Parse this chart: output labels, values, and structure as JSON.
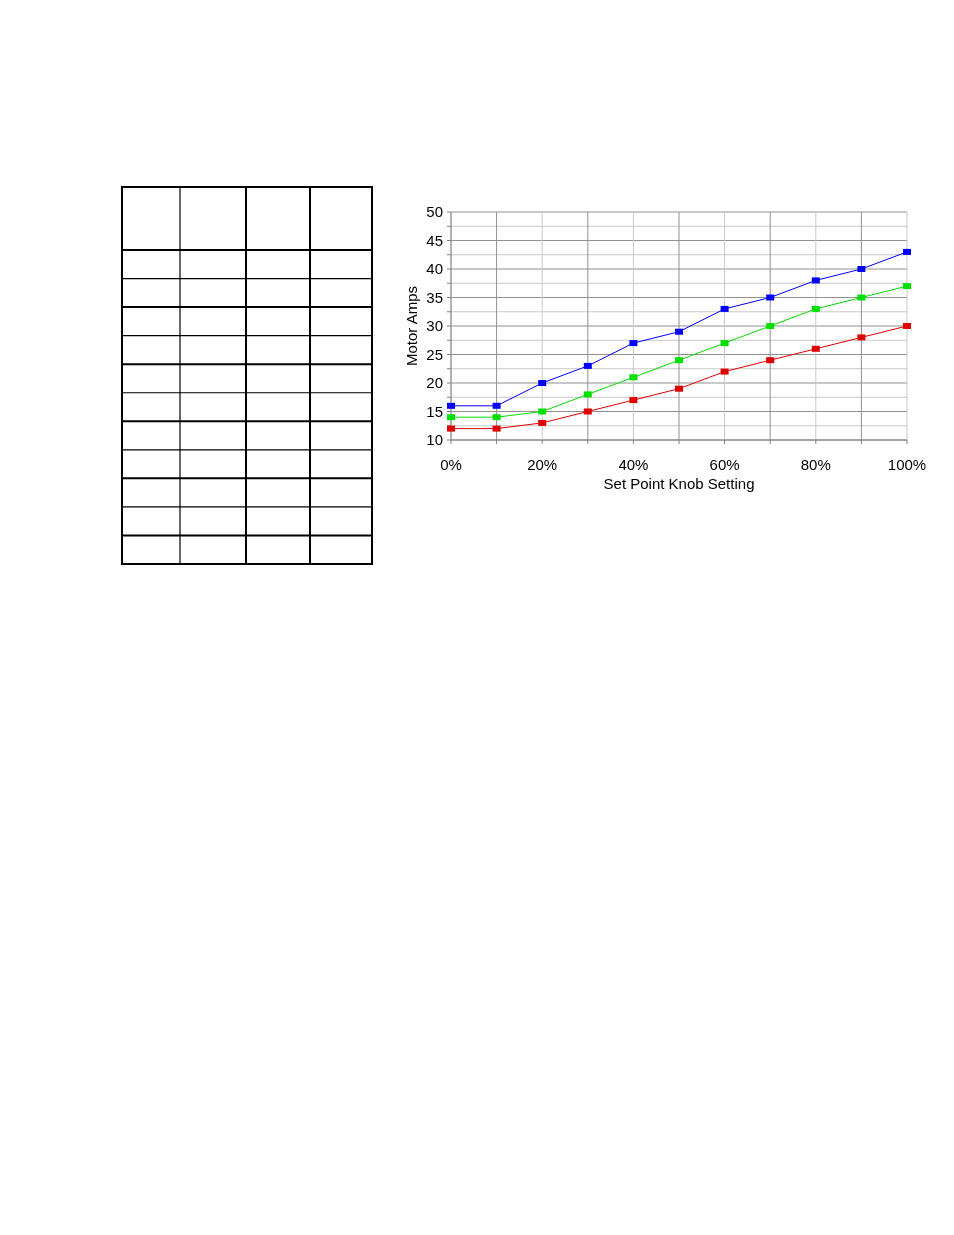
{
  "chart_data": {
    "type": "line",
    "xlabel": "Set Point Knob Setting",
    "ylabel": "Motor Amps",
    "x": [
      0,
      10,
      20,
      30,
      40,
      50,
      60,
      70,
      80,
      90,
      100
    ],
    "series": [
      {
        "color": "#0000ff",
        "values": [
          16,
          16,
          20,
          23,
          27,
          29,
          33,
          35,
          38,
          40,
          43
        ]
      },
      {
        "color": "#00e000",
        "values": [
          14,
          14,
          15,
          18,
          21,
          24,
          27,
          30,
          33,
          35,
          37
        ]
      },
      {
        "color": "#e00000",
        "values": [
          12,
          12,
          13,
          15,
          17,
          19,
          22,
          24,
          26,
          28,
          30
        ]
      }
    ],
    "xlim": [
      0,
      100
    ],
    "xticks": [
      {
        "value": 0,
        "label": "0%"
      },
      {
        "value": 10,
        "label": null
      },
      {
        "value": 20,
        "label": "20%"
      },
      {
        "value": 30,
        "label": null
      },
      {
        "value": 40,
        "label": "40%"
      },
      {
        "value": 50,
        "label": null
      },
      {
        "value": 60,
        "label": "60%"
      },
      {
        "value": 70,
        "label": null
      },
      {
        "value": 80,
        "label": "80%"
      },
      {
        "value": 90,
        "label": null
      },
      {
        "value": 100,
        "label": "100%"
      }
    ],
    "ylim": [
      10,
      50
    ],
    "yticks": [
      10,
      {
        "value": 12.5,
        "label": null
      },
      15,
      {
        "value": 17.5,
        "label": null
      },
      20,
      {
        "value": 22.5,
        "label": null
      },
      25,
      {
        "value": 27.5,
        "label": null
      },
      30,
      {
        "value": 32.5,
        "label": null
      },
      35,
      {
        "value": 37.5,
        "label": null
      },
      40,
      {
        "value": 42.5,
        "label": null
      },
      45,
      {
        "value": 47.5,
        "label": null
      },
      50
    ],
    "grid": true,
    "marker": "square",
    "line_style": "solid"
  }
}
